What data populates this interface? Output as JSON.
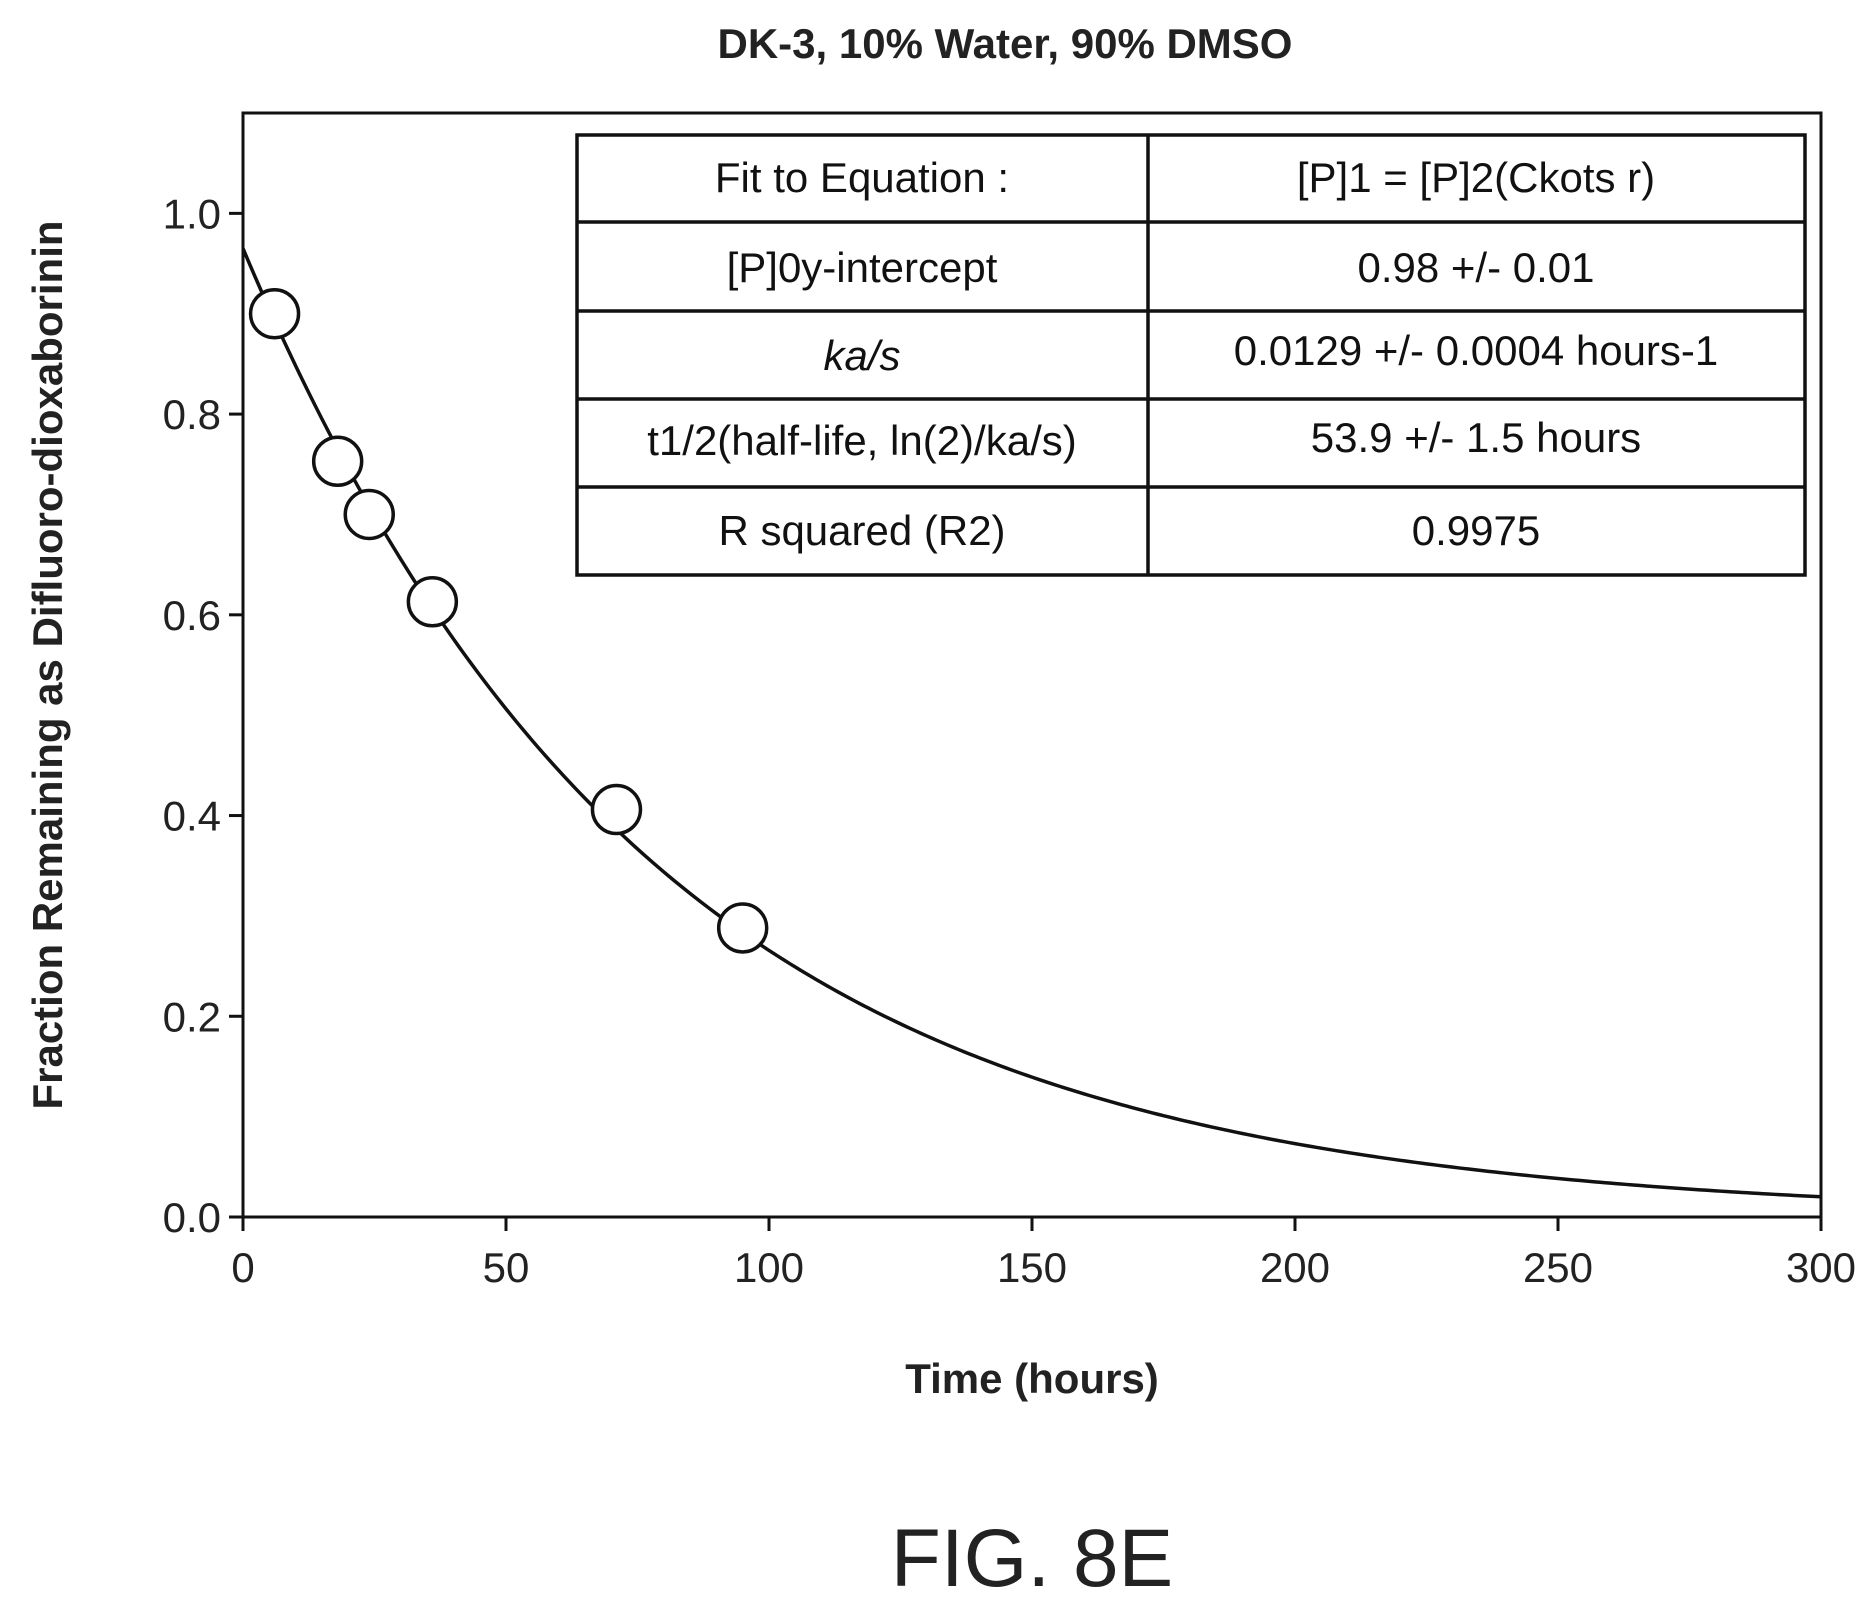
{
  "chart_data": {
    "type": "scatter",
    "title": "DK-3, 10% Water, 90% DMSO",
    "xlabel": "Time (hours)",
    "ylabel": "Fraction Remaining as Difluoro-dioxaborinin",
    "xlim": [
      0,
      300
    ],
    "ylim": [
      0,
      1.1
    ],
    "x_ticks": [
      0,
      50,
      100,
      150,
      200,
      250,
      300
    ],
    "y_ticks": [
      0.0,
      0.2,
      0.4,
      0.6,
      0.8,
      1.0
    ],
    "x_tick_labels": [
      "0",
      "50",
      "100",
      "150",
      "200",
      "250",
      "300"
    ],
    "y_tick_labels": [
      "0.0",
      "0.2",
      "0.4",
      "0.6",
      "0.8",
      "1.0"
    ],
    "grid": false,
    "series": [
      {
        "type": "scatter",
        "x": [
          6,
          18,
          24,
          36,
          71,
          95
        ],
        "y": [
          0.9,
          0.753,
          0.7,
          0.613,
          0.406,
          0.288
        ]
      },
      {
        "type": "line",
        "fit": {
          "y0": 0.965,
          "k": 0.0129
        }
      }
    ]
  },
  "fit_table": {
    "rows": [
      {
        "label": "Fit to Equation :",
        "value": "[P]1 = [P]2(Ckots r)"
      },
      {
        "label": "[P]0y-intercept",
        "value": "0.98 +/- 0.01"
      },
      {
        "label": "ka/s",
        "value": "0.0129 +/- 0.0004 hours-1"
      },
      {
        "label": "t1/2(half-life, ln(2)/ka/s)",
        "value": "53.9 +/- 1.5 hours"
      },
      {
        "label": "R squared (R2)",
        "value": "0.9975"
      }
    ]
  },
  "figure_label": "FIG. 8E"
}
